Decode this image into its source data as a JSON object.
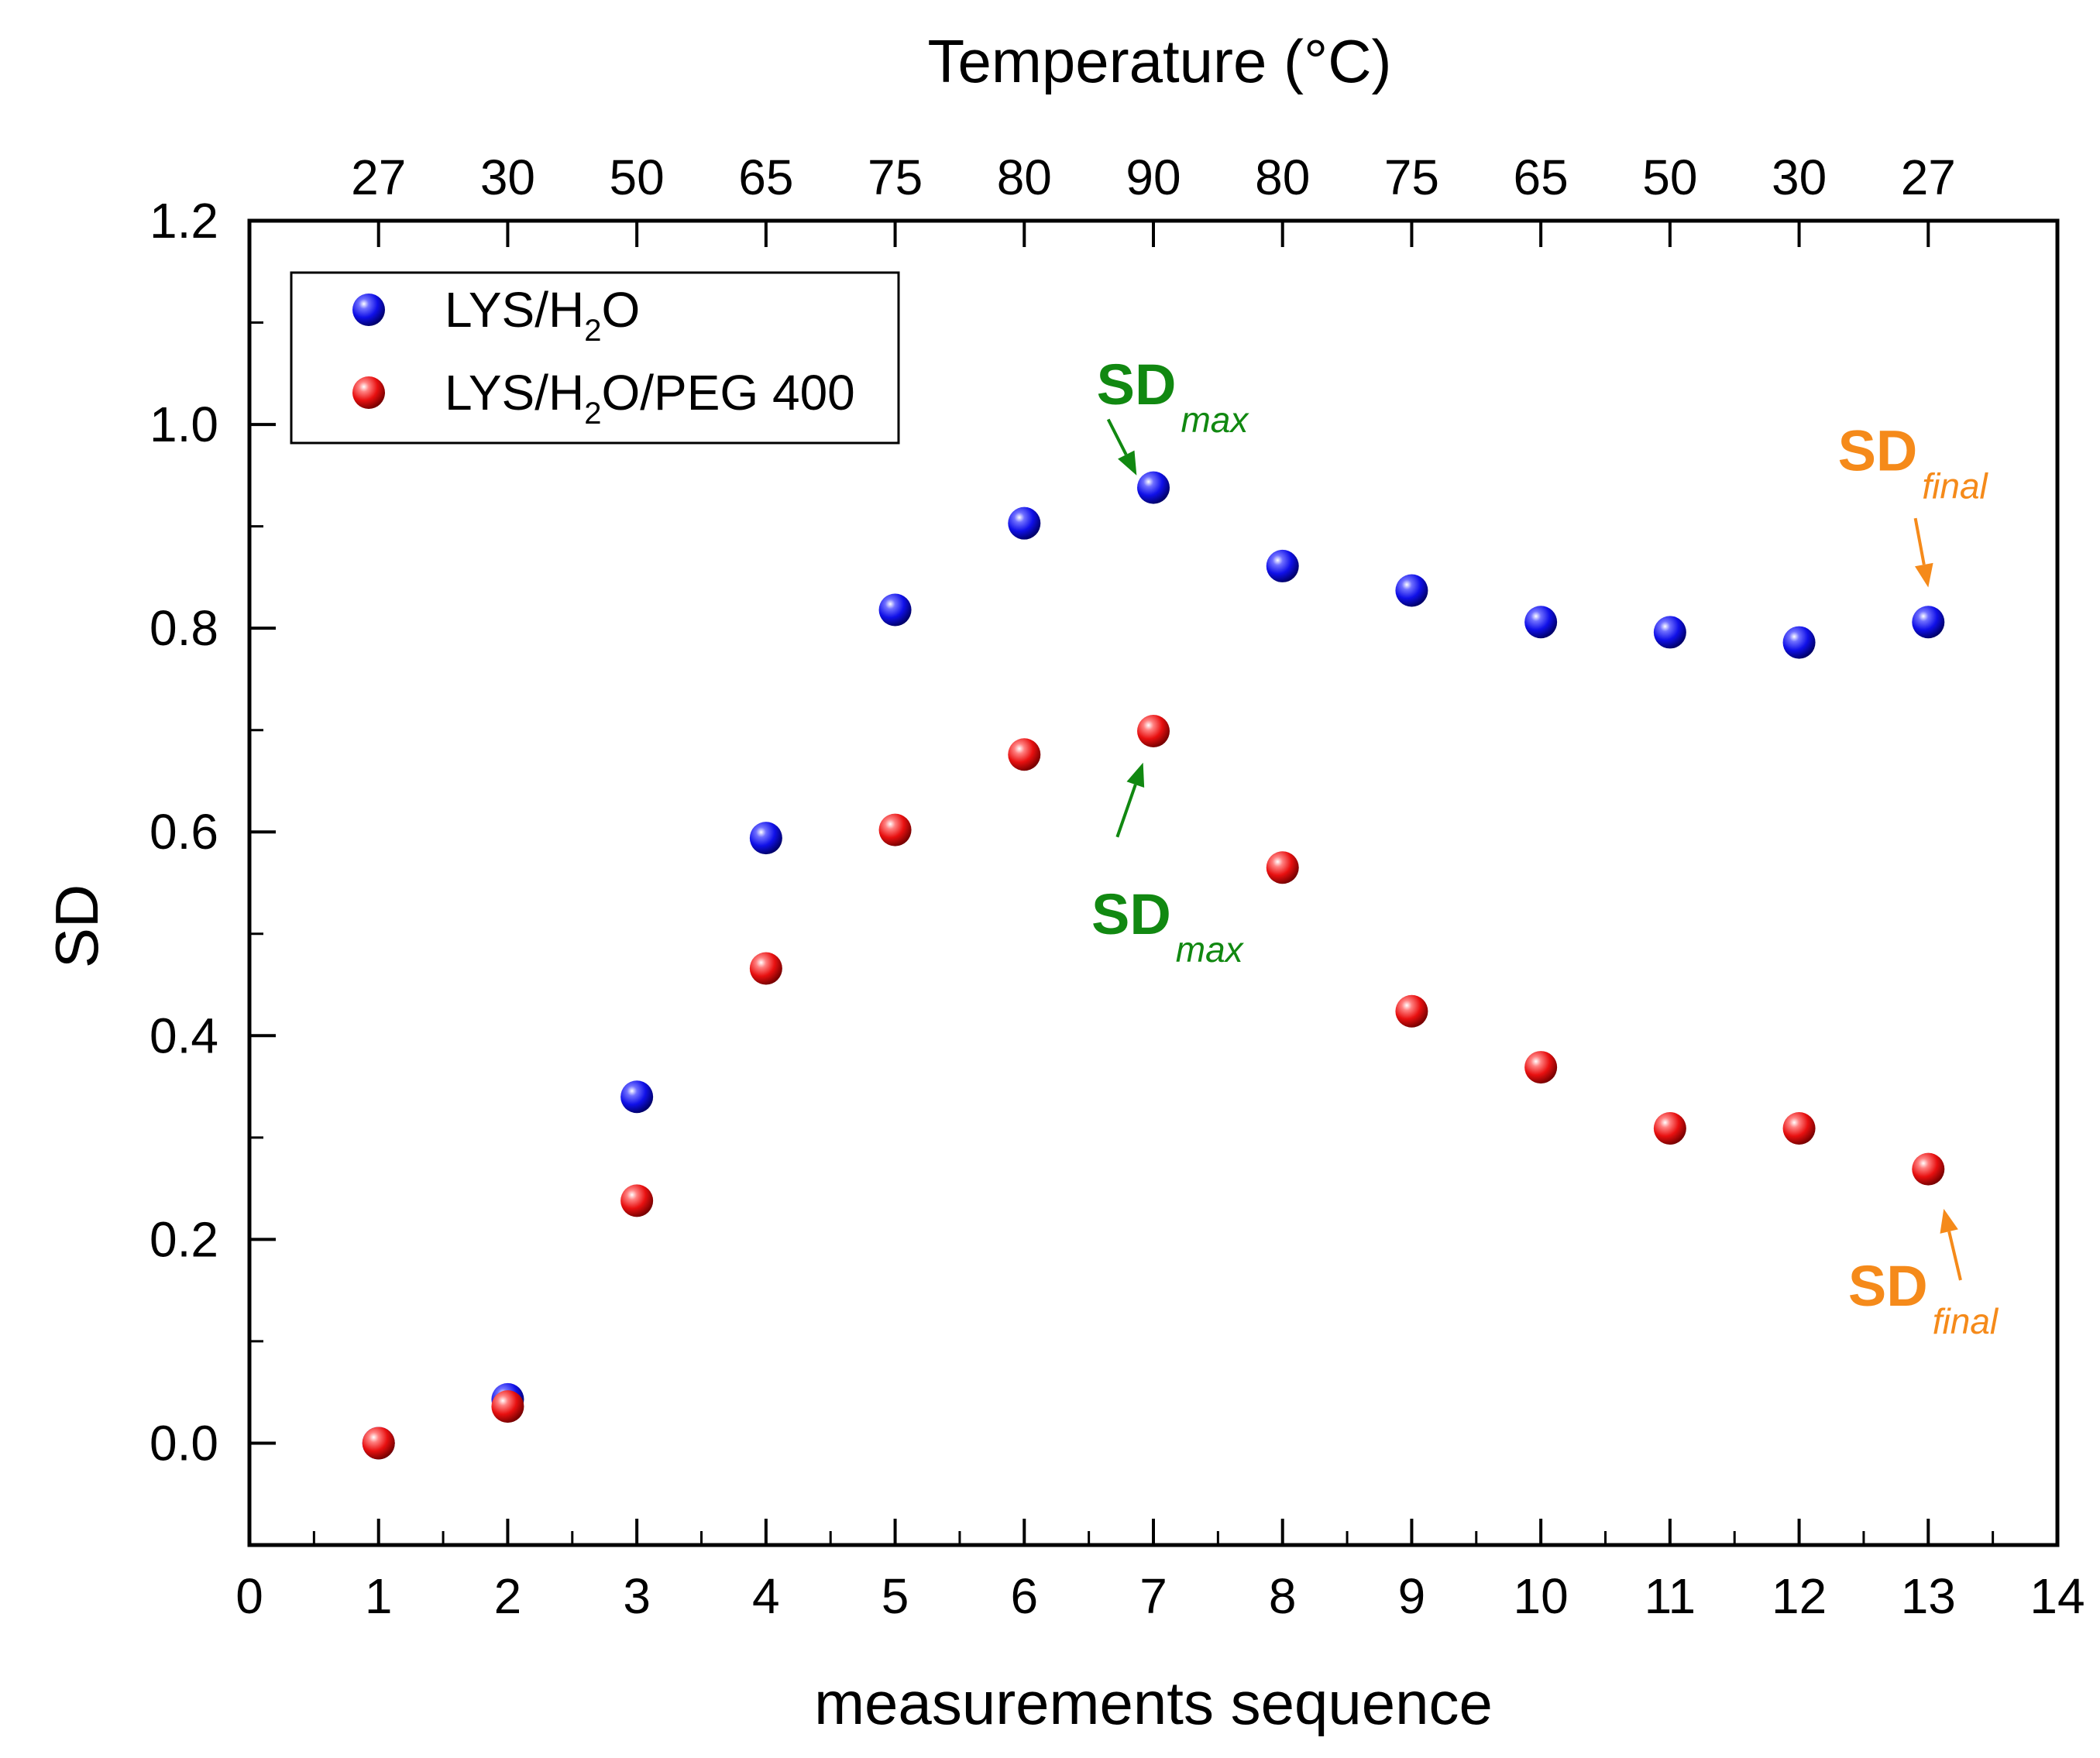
{
  "chart_data": {
    "type": "scatter",
    "title": "",
    "xlabel": "measurements sequence",
    "ylabel": "SD",
    "top_xlabel": "Temperature (°C)",
    "xlim": [
      0,
      14
    ],
    "ylim": [
      -0.1,
      1.2
    ],
    "x_ticks": [
      0,
      1,
      2,
      3,
      4,
      5,
      6,
      7,
      8,
      9,
      10,
      11,
      12,
      13,
      14
    ],
    "y_ticks": [
      0.0,
      0.2,
      0.4,
      0.6,
      0.8,
      1.0,
      1.2
    ],
    "y_tick_labels": [
      "0.0",
      "0.2",
      "0.4",
      "0.6",
      "0.8",
      "1.0",
      "1.2"
    ],
    "top_ticks": [
      {
        "x": 1,
        "label": "27"
      },
      {
        "x": 2,
        "label": "30"
      },
      {
        "x": 3,
        "label": "50"
      },
      {
        "x": 4,
        "label": "65"
      },
      {
        "x": 5,
        "label": "75"
      },
      {
        "x": 6,
        "label": "80"
      },
      {
        "x": 7,
        "label": "90"
      },
      {
        "x": 8,
        "label": "80"
      },
      {
        "x": 9,
        "label": "75"
      },
      {
        "x": 10,
        "label": "65"
      },
      {
        "x": 11,
        "label": "50"
      },
      {
        "x": 12,
        "label": "30"
      },
      {
        "x": 13,
        "label": "27"
      }
    ],
    "legend_position": "top-left",
    "series": [
      {
        "name": "LYS/H2O",
        "label_parts": [
          "LYS/H",
          "2",
          "O"
        ],
        "color": "#1010e8",
        "x": [
          1,
          2,
          3,
          4,
          5,
          6,
          7,
          8,
          9,
          10,
          11,
          12,
          13
        ],
        "y": [
          0.0,
          0.043,
          0.34,
          0.594,
          0.818,
          0.903,
          0.938,
          0.861,
          0.837,
          0.806,
          0.796,
          0.786,
          0.806
        ]
      },
      {
        "name": "LYS/H2O/PEG 400",
        "label_parts": [
          "LYS/H",
          "2",
          "O/PEG 400"
        ],
        "color": "#e81010",
        "x": [
          1,
          2,
          3,
          4,
          5,
          6,
          7,
          8,
          9,
          10,
          11,
          12,
          13
        ],
        "y": [
          0.0,
          0.036,
          0.238,
          0.466,
          0.602,
          0.676,
          0.699,
          0.565,
          0.424,
          0.369,
          0.309,
          0.309,
          0.269
        ]
      }
    ],
    "annotations": [
      {
        "main": "SD",
        "sub": "max",
        "color": "#118811",
        "text_at": [
          6.56,
          1.02
        ],
        "arrow_from": [
          6.65,
          1.005
        ],
        "arrow_to": [
          6.87,
          0.95
        ]
      },
      {
        "main": "SD",
        "sub": "final",
        "color": "#f58a1a",
        "text_at": [
          12.3,
          0.955
        ],
        "arrow_from": [
          12.9,
          0.908
        ],
        "arrow_to": [
          13.0,
          0.84
        ]
      },
      {
        "main": "SD",
        "sub": "max",
        "color": "#118811",
        "text_at": [
          6.52,
          0.5
        ],
        "arrow_from": [
          6.72,
          0.595
        ],
        "arrow_to": [
          6.92,
          0.668
        ]
      },
      {
        "main": "SD",
        "sub": "final",
        "color": "#f58a1a",
        "text_at": [
          12.38,
          0.135
        ],
        "arrow_from": [
          13.25,
          0.16
        ],
        "arrow_to": [
          13.12,
          0.23
        ]
      }
    ]
  }
}
